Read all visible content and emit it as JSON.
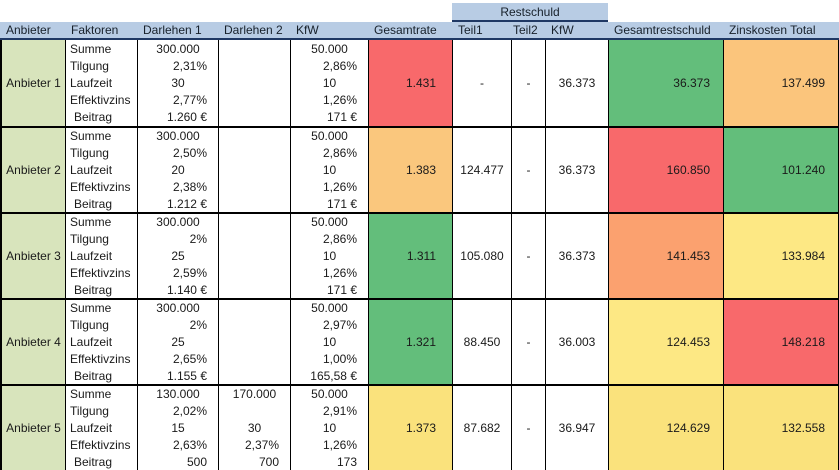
{
  "table": {
    "restschuld_group_label": "Restschuld",
    "headers": [
      "Anbieter",
      "Faktoren",
      "Darlehen 1",
      "Darlehen 2",
      "KfW",
      "Gesamtrate",
      "Teil1",
      "Teil2",
      "KfW",
      "Gesamtrestschuld",
      "Zinskosten Total"
    ],
    "factor_labels": [
      "Summe",
      "Tilgung",
      "Laufzeit",
      "Effektivzins",
      "Beitrag"
    ],
    "providers": [
      {
        "name": "Anbieter 1",
        "darlehen1": [
          "300.000",
          "2,31%",
          "30",
          "2,77%",
          "1.260 €"
        ],
        "darlehen2": [
          "",
          "",
          "",
          "",
          ""
        ],
        "kfw": [
          "50.000",
          "2,86%",
          "10",
          "1,26%",
          "171 €"
        ],
        "gesamtrate": {
          "value": "1.431",
          "bg": "#F8696B"
        },
        "teil1": "-",
        "teil2": "-",
        "kfw_rest": "36.373",
        "gesamtrestschuld": {
          "value": "36.373",
          "bg": "#63BE7B"
        },
        "zinskosten": {
          "value": "137.499",
          "bg": "#FBC57C"
        }
      },
      {
        "name": "Anbieter 2",
        "darlehen1": [
          "300.000",
          "2,50%",
          "20",
          "2,38%",
          "1.212 €"
        ],
        "darlehen2": [
          "",
          "",
          "",
          "",
          ""
        ],
        "kfw": [
          "50.000",
          "2,86%",
          "10",
          "1,26%",
          "171 €"
        ],
        "gesamtrate": {
          "value": "1.383",
          "bg": "#FAC77D"
        },
        "teil1": "124.477",
        "teil2": "-",
        "kfw_rest": "36.373",
        "gesamtrestschuld": {
          "value": "160.850",
          "bg": "#F8696B"
        },
        "zinskosten": {
          "value": "101.240",
          "bg": "#63BE7B"
        }
      },
      {
        "name": "Anbieter 3",
        "darlehen1": [
          "300.000",
          "2%",
          "25",
          "2,59%",
          "1.140 €"
        ],
        "darlehen2": [
          "",
          "",
          "",
          "",
          ""
        ],
        "kfw": [
          "50.000",
          "2,86%",
          "10",
          "1,26%",
          "171 €"
        ],
        "gesamtrate": {
          "value": "1.311",
          "bg": "#63BE7B"
        },
        "teil1": "105.080",
        "teil2": "-",
        "kfw_rest": "36.373",
        "gesamtrestschuld": {
          "value": "141.453",
          "bg": "#FBA16F"
        },
        "zinskosten": {
          "value": "133.984",
          "bg": "#FDE884"
        }
      },
      {
        "name": "Anbieter 4",
        "darlehen1": [
          "300.000",
          "2%",
          "25",
          "2,65%",
          "1.155 €"
        ],
        "darlehen2": [
          "",
          "",
          "",
          "",
          ""
        ],
        "kfw": [
          "50.000",
          "2,97%",
          "10",
          "1,00%",
          "165,58 €"
        ],
        "gesamtrate": {
          "value": "1.321",
          "bg": "#63BE7B"
        },
        "teil1": "88.450",
        "teil2": "-",
        "kfw_rest": "36.003",
        "gesamtrestschuld": {
          "value": "124.453",
          "bg": "#FDE884"
        },
        "zinskosten": {
          "value": "148.218",
          "bg": "#F8696B"
        }
      },
      {
        "name": "Anbieter 5",
        "darlehen1": [
          "130.000",
          "2,02%",
          "15",
          "2,63%",
          "500"
        ],
        "darlehen2": [
          "170.000",
          "",
          "30",
          "2,37%",
          "700"
        ],
        "kfw": [
          "50.000",
          "2,91%",
          "10",
          "1,26%",
          "173"
        ],
        "gesamtrate": {
          "value": "1.373",
          "bg": "#FAE27C"
        },
        "teil1": "87.682",
        "teil2": "-",
        "kfw_rest": "36.947",
        "gesamtrestschuld": {
          "value": "124.629",
          "bg": "#FAE27C"
        },
        "zinskosten": {
          "value": "132.558",
          "bg": "#FAE27C"
        }
      }
    ]
  },
  "colors": {
    "header_bg": "#B8CCE4",
    "header_border": "#1F3864",
    "provider_bg": "#D8E4BC",
    "scale_red": "#F8696B",
    "scale_green": "#63BE7B",
    "scale_amber": "#FBC57C",
    "scale_orange": "#FBA16F",
    "scale_yellow": "#FAE27C"
  }
}
